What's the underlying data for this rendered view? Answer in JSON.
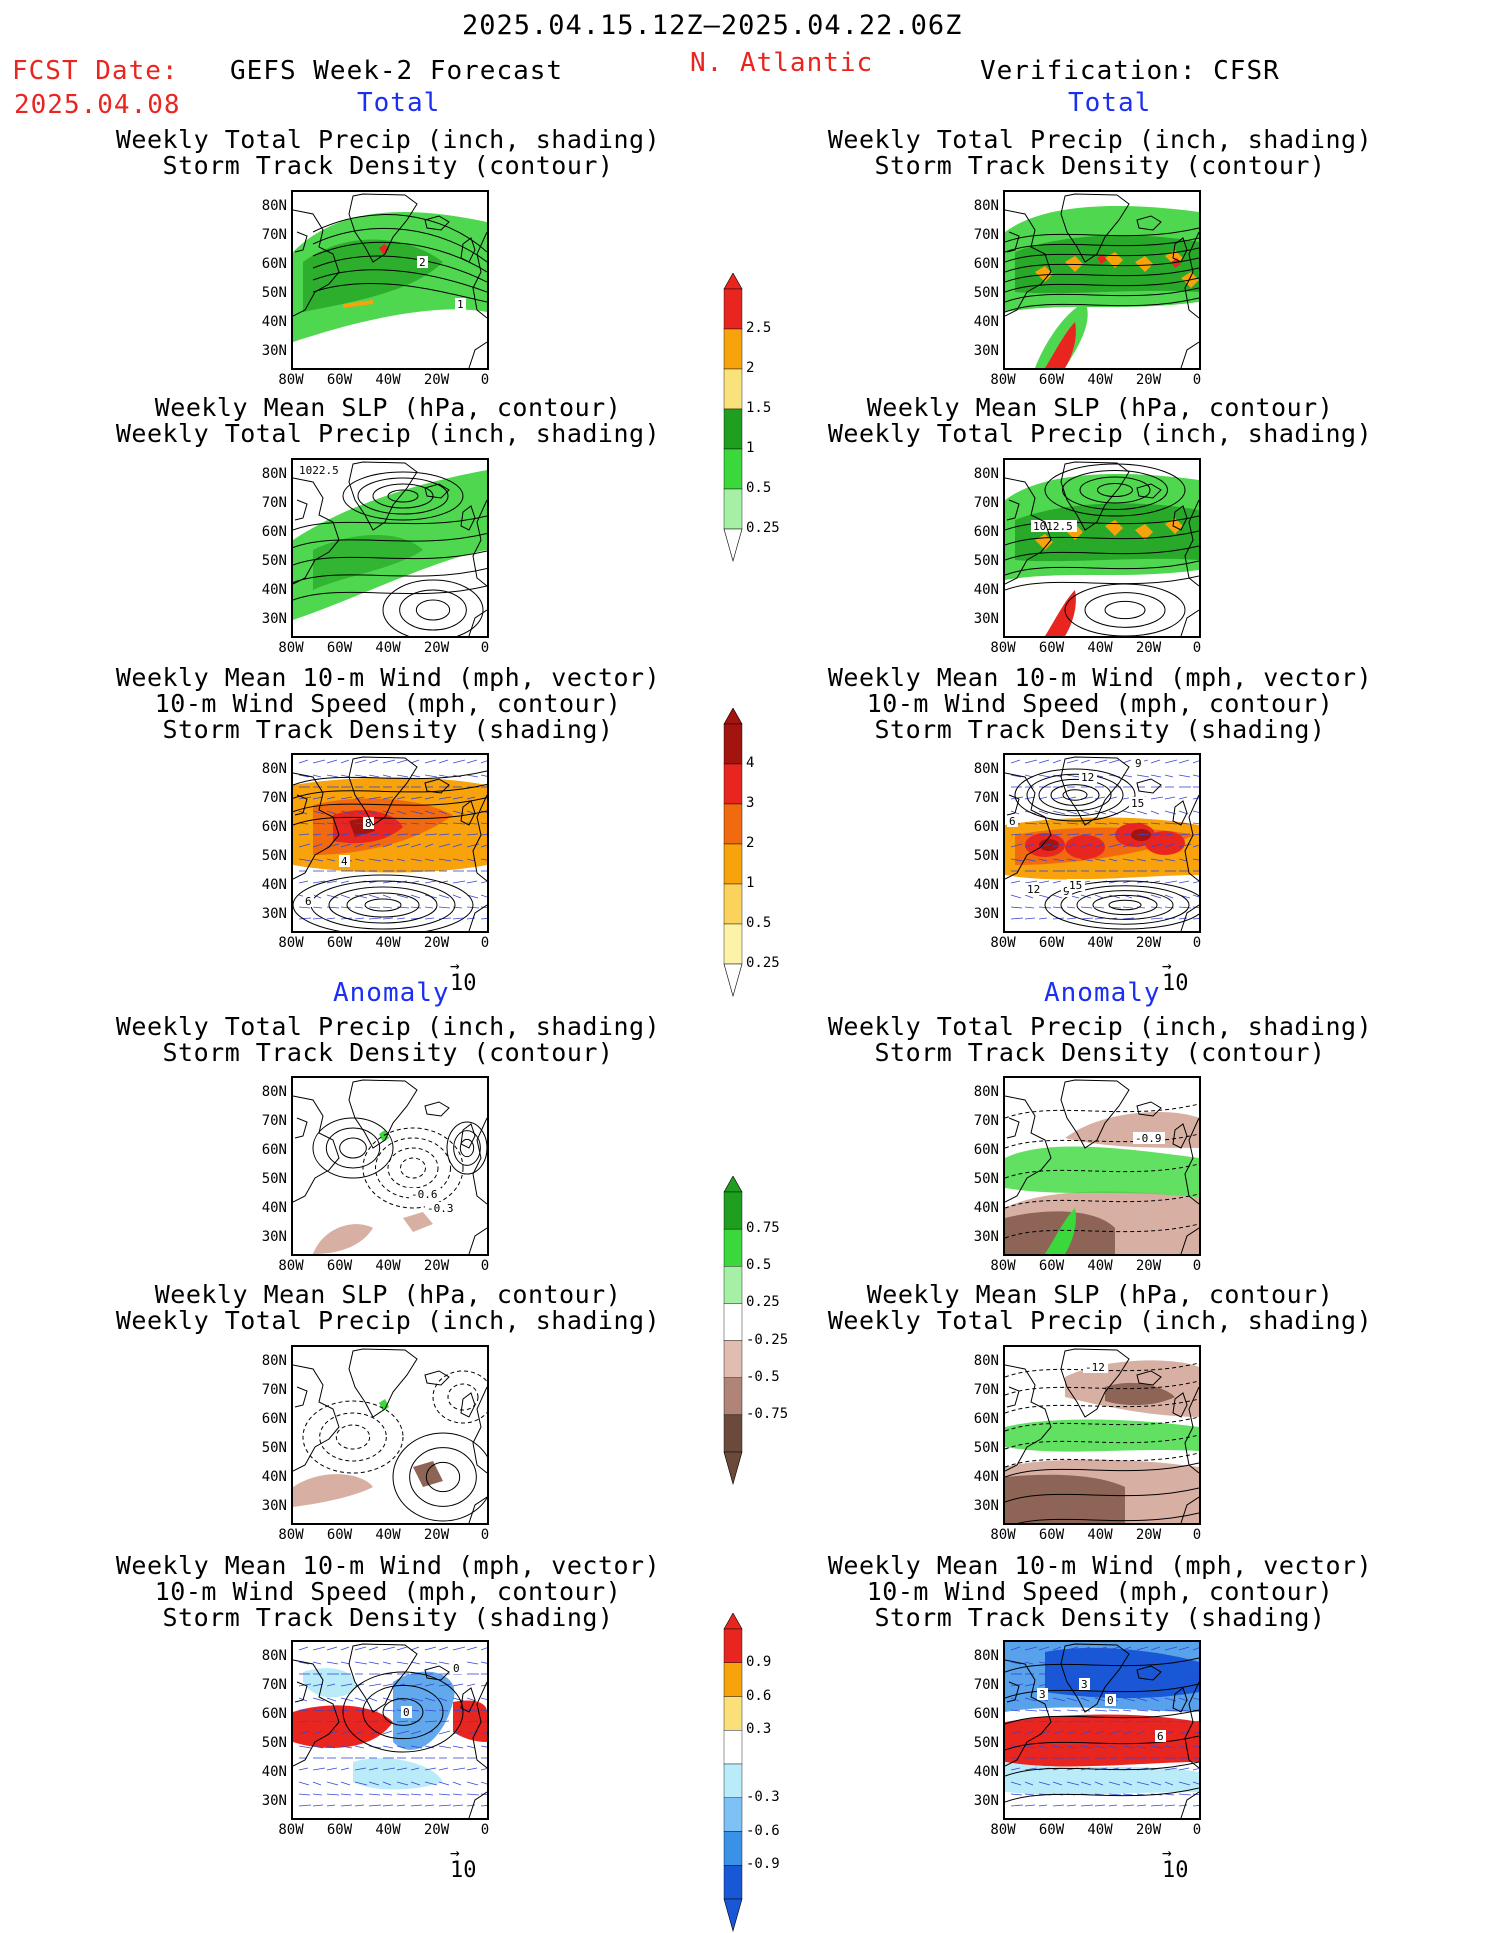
{
  "header": {
    "date_range": "2025.04.15.12Z–2025.04.22.06Z",
    "fcst_label": "FCST Date:",
    "fcst_date": "2025.04.08",
    "left_title": "GEFS Week-2 Forecast",
    "region": "N. Atlantic",
    "right_title": "Verification: CFSR"
  },
  "sections": {
    "total": "Total",
    "anomaly": "Anomaly"
  },
  "panel_titles": {
    "precip": [
      "Weekly Total Precip (inch, shading)",
      "Storm Track Density (contour)"
    ],
    "slp": [
      "Weekly Mean SLP (hPa, contour)",
      "Weekly Total Precip (inch, shading)"
    ],
    "wind": [
      "Weekly Mean 10-m Wind (mph, vector)",
      "10-m Wind Speed (mph, contour)",
      "Storm Track Density (shading)"
    ]
  },
  "axes": {
    "lat_ticks": [
      "80N",
      "70N",
      "60N",
      "50N",
      "40N",
      "30N"
    ],
    "lon_ticks": [
      "80W",
      "60W",
      "40W",
      "20W",
      "0"
    ]
  },
  "reference_vector": "10",
  "contour_labels": {
    "fc_precip": [
      "2",
      "1"
    ],
    "fc_slp": [
      "1022.5"
    ],
    "fc_wind": [
      "8",
      "4",
      "6"
    ],
    "vf_slp": [
      "1012.5"
    ],
    "vf_wind": [
      "12",
      "9",
      "6",
      "15",
      "12",
      "9",
      "15"
    ],
    "fa_precip": [
      "-0.6",
      "-0.3"
    ],
    "va_precip": [
      "-0.9"
    ],
    "va_slp": [
      "-12"
    ],
    "fa_wind": [
      "0",
      "0"
    ],
    "va_wind": [
      "3",
      "3",
      "0",
      "6"
    ]
  },
  "colorbars": {
    "precip_total": {
      "labels": [
        "2.5",
        "2",
        "1.5",
        "1",
        "0.5",
        "0.25"
      ],
      "colors": [
        "#e8251f",
        "#f8a20c",
        "#f9e27b",
        "#1f9e1f",
        "#3bd83b",
        "#a6f0a6"
      ]
    },
    "storm_total": {
      "labels": [
        "4",
        "3",
        "2",
        "1",
        "0.5",
        "0.25"
      ],
      "colors": [
        "#a4140f",
        "#e8251f",
        "#f26a0f",
        "#f8a20c",
        "#fbd25b",
        "#fdf3a8"
      ]
    },
    "precip_anom": {
      "labels": [
        "0.75",
        "0.5",
        "0.25",
        "-0.25",
        "-0.5",
        "-0.75"
      ],
      "colors": [
        "#1f9e1f",
        "#3bd83b",
        "#a6f0a6",
        "#ffffff",
        "#e1bcb0",
        "#b08476",
        "#6b4a3c"
      ]
    },
    "storm_anom": {
      "labels": [
        "0.9",
        "0.6",
        "0.3",
        "-0.3",
        "-0.6",
        "-0.9"
      ],
      "colors": [
        "#e8251f",
        "#f8a20c",
        "#fbe07a",
        "#ffffff",
        "#b9ecf8",
        "#7ec1f4",
        "#3a92e8",
        "#1858d6"
      ]
    }
  },
  "shading": {
    "precip_total": {
      "base": "#4fd84f",
      "heavy": "#1f9e1f",
      "high": "#f8a20c",
      "peak": "#e8251f"
    },
    "storm_total": {
      "base": "#f8a20c",
      "mid": "#f26a0f",
      "high": "#e8251f",
      "peak": "#a4140f"
    },
    "anom_dry": "#d7b0a3",
    "anom_dry2": "#8d6455",
    "anom_wet": "#3bd83b",
    "anom_pos": "#e8251f",
    "anom_neg": "#3a92e8",
    "anom_neg2": "#1858d6",
    "land_line": "#000000",
    "vector": "#3646d8"
  }
}
